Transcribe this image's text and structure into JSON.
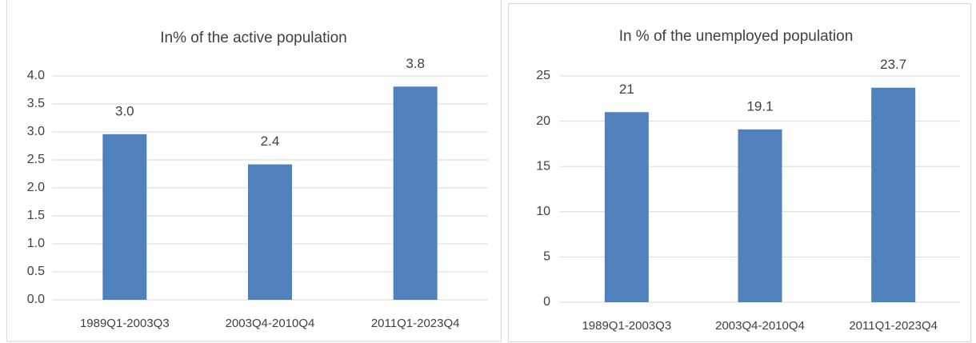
{
  "chart_data": [
    {
      "type": "bar",
      "title": "In% of  the active population",
      "categories": [
        "1989Q1-2003Q3",
        "2003Q4-2010Q4",
        "2011Q1-2023Q4"
      ],
      "values": [
        2.96,
        2.42,
        3.81
      ],
      "value_labels": [
        "3.0",
        "2.4",
        "3.8"
      ],
      "color": "#4f81bd",
      "ylim": [
        0,
        4
      ],
      "yticks": [
        {
          "value": 0,
          "label": "0.0"
        },
        {
          "value": 0.5,
          "label": "0.5"
        },
        {
          "value": 1,
          "label": "1.0"
        },
        {
          "value": 1.5,
          "label": "1.5"
        },
        {
          "value": 2,
          "label": "2.0"
        },
        {
          "value": 2.5,
          "label": "2.5"
        },
        {
          "value": 3,
          "label": "3.0"
        },
        {
          "value": 3.5,
          "label": "3.5"
        },
        {
          "value": 4,
          "label": "4.0"
        }
      ],
      "grid": true
    },
    {
      "type": "bar",
      "title": "In % of the unemployed population",
      "categories": [
        "1989Q1-2003Q3",
        "2003Q4-2010Q4",
        "2011Q1-2023Q4"
      ],
      "values": [
        21,
        19.1,
        23.7
      ],
      "color": "#4f81bd",
      "ylim": [
        0,
        25
      ],
      "yticks": [
        0,
        5,
        10,
        15,
        20,
        25
      ],
      "grid": true
    }
  ]
}
